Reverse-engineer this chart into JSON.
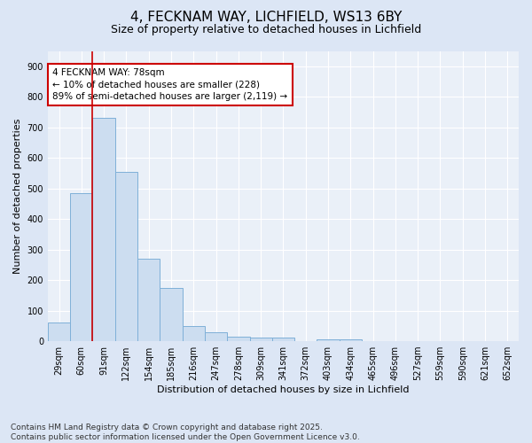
{
  "title1": "4, FECKNAM WAY, LICHFIELD, WS13 6BY",
  "title2": "Size of property relative to detached houses in Lichfield",
  "xlabel": "Distribution of detached houses by size in Lichfield",
  "ylabel": "Number of detached properties",
  "categories": [
    "29sqm",
    "60sqm",
    "91sqm",
    "122sqm",
    "154sqm",
    "185sqm",
    "216sqm",
    "247sqm",
    "278sqm",
    "309sqm",
    "341sqm",
    "372sqm",
    "403sqm",
    "434sqm",
    "465sqm",
    "496sqm",
    "527sqm",
    "559sqm",
    "590sqm",
    "621sqm",
    "652sqm"
  ],
  "values": [
    60,
    485,
    730,
    555,
    270,
    175,
    50,
    30,
    15,
    12,
    12,
    0,
    7,
    7,
    0,
    0,
    0,
    0,
    0,
    0,
    0
  ],
  "bar_color": "#ccddf0",
  "bar_edge_color": "#7fb0d8",
  "vline_color": "#cc0000",
  "annotation_text": "4 FECKNAM WAY: 78sqm\n← 10% of detached houses are smaller (228)\n89% of semi-detached houses are larger (2,119) →",
  "annotation_box_color": "#ffffff",
  "annotation_box_edge": "#cc0000",
  "ylim": [
    0,
    950
  ],
  "yticks": [
    0,
    100,
    200,
    300,
    400,
    500,
    600,
    700,
    800,
    900
  ],
  "footer": "Contains HM Land Registry data © Crown copyright and database right 2025.\nContains public sector information licensed under the Open Government Licence v3.0.",
  "title_fontsize": 11,
  "subtitle_fontsize": 9,
  "axis_label_fontsize": 8,
  "tick_fontsize": 7,
  "annotation_fontsize": 7.5,
  "footer_fontsize": 6.5,
  "figure_bg": "#dce6f5",
  "plot_bg": "#eaf0f8"
}
